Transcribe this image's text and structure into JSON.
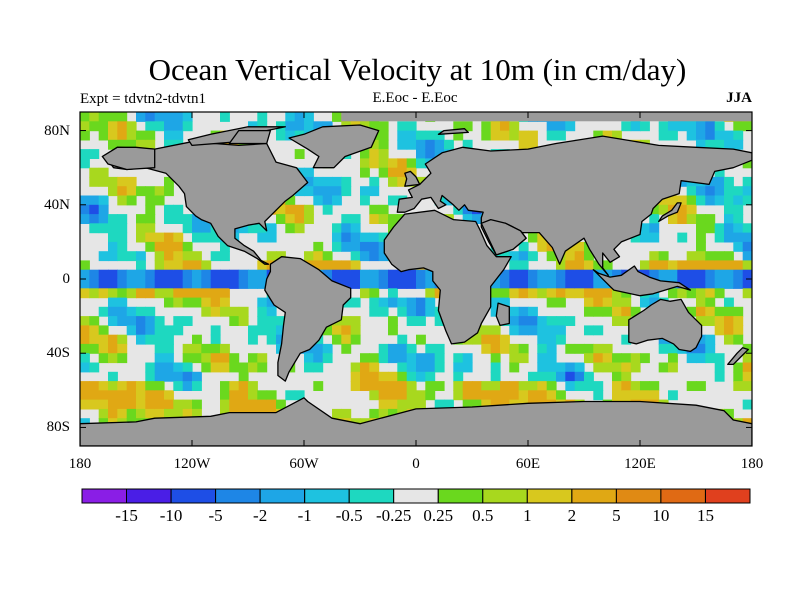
{
  "chart_data": {
    "type": "heatmap",
    "title": "Ocean Vertical Velocity at 10m (in cm/day)",
    "experiment_label": "Expt = tdvtn2-tdvtn1",
    "center_label": "E.Eoc - E.Eoc",
    "season_label": "JJA",
    "lat_ticks": [
      "80N",
      "40N",
      "0",
      "40S",
      "80S"
    ],
    "lat_values": [
      80,
      40,
      0,
      -40,
      -80
    ],
    "lon_ticks": [
      "180",
      "120W",
      "60W",
      "0",
      "60E",
      "120E",
      "180"
    ],
    "lon_values": [
      -180,
      -120,
      -60,
      0,
      60,
      120,
      180
    ],
    "xlim": [
      -180,
      180
    ],
    "ylim": [
      -90,
      90
    ],
    "colorbar": {
      "labels": [
        "-15",
        "-10",
        "-5",
        "-2",
        "-1",
        "-0.5",
        "-0.25",
        "0.25",
        "0.5",
        "1",
        "2",
        "5",
        "10",
        "15"
      ],
      "colors": [
        "#8a1ee6",
        "#4a1ee6",
        "#1e4ee6",
        "#1e86e6",
        "#1ea6e6",
        "#1ec2e0",
        "#1ed8c0",
        "#e6e6e6",
        "#6ad81e",
        "#a8d81e",
        "#d8c81e",
        "#e0a814",
        "#e08a14",
        "#e06a14",
        "#e0401e"
      ]
    },
    "land_color": "#9a9a9a"
  }
}
